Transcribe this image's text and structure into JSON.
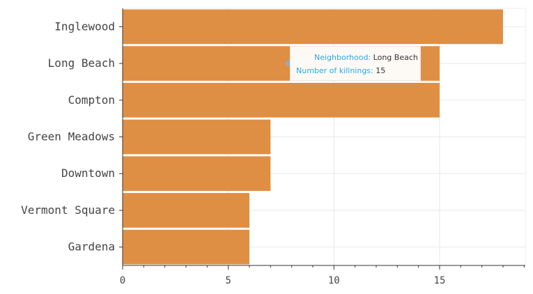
{
  "chart_data": {
    "type": "bar",
    "orientation": "horizontal",
    "categories": [
      "Inglewood",
      "Long Beach",
      "Compton",
      "Green Meadows",
      "Downtown",
      "Vermont Square",
      "Gardena"
    ],
    "values": [
      18,
      15,
      15,
      7,
      7,
      6,
      6
    ],
    "xlim": [
      0,
      19
    ],
    "xticks": [
      0,
      5,
      10,
      15
    ],
    "grid": true,
    "bar_color": "#df8f44",
    "tooltip": {
      "key1": "Neighborhood:",
      "val1": "Long Beach",
      "key2": "Number of killnings:",
      "val2": "15"
    }
  }
}
